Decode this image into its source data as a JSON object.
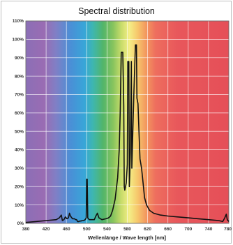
{
  "chart_data": {
    "type": "line",
    "title": "Spectral distribution",
    "xlabel": "Wellenlänge / Wave length [nm]",
    "ylabel": "",
    "xlim": [
      380,
      780
    ],
    "ylim": [
      0,
      110
    ],
    "x_ticks": [
      "380",
      "420",
      "460",
      "500",
      "540",
      "580",
      "620",
      "660",
      "700",
      "740",
      "780"
    ],
    "y_ticks": [
      "0%",
      "10%",
      "20%",
      "30%",
      "40%",
      "50%",
      "60%",
      "70%",
      "80%",
      "90%",
      "100%",
      "110%"
    ],
    "grid": true,
    "background": "visible spectrum color bands",
    "series": [
      {
        "color": "#111111",
        "points": [
          [
            380,
            0.5
          ],
          [
            400,
            1
          ],
          [
            420,
            1.5
          ],
          [
            440,
            2
          ],
          [
            446,
            3
          ],
          [
            450,
            4.5
          ],
          [
            452,
            1.5
          ],
          [
            455,
            2
          ],
          [
            458,
            3.5
          ],
          [
            461,
            2.5
          ],
          [
            464,
            3
          ],
          [
            466,
            5.5
          ],
          [
            468,
            4
          ],
          [
            472,
            2.5
          ],
          [
            476,
            2.5
          ],
          [
            478,
            2
          ],
          [
            480,
            2
          ],
          [
            481,
            1.5
          ],
          [
            482,
            1
          ],
          [
            484,
            1
          ],
          [
            486,
            1.2
          ],
          [
            489,
            1.3
          ],
          [
            491,
            1.5
          ],
          [
            494,
            1.5
          ],
          [
            497,
            2
          ],
          [
            499,
            3
          ],
          [
            500,
            24
          ],
          [
            501,
            24
          ],
          [
            502,
            3
          ],
          [
            505,
            2
          ],
          [
            510,
            2
          ],
          [
            515,
            2
          ],
          [
            518,
            4
          ],
          [
            521,
            5.5
          ],
          [
            524,
            3
          ],
          [
            530,
            2
          ],
          [
            538,
            2.5
          ],
          [
            543,
            3
          ],
          [
            547,
            4
          ],
          [
            551,
            7
          ],
          [
            556,
            13
          ],
          [
            561,
            25
          ],
          [
            564,
            40
          ],
          [
            566,
            60
          ],
          [
            568,
            93
          ],
          [
            571,
            93
          ],
          [
            573,
            64
          ],
          [
            574,
            20
          ],
          [
            575,
            18
          ],
          [
            578,
            22
          ],
          [
            580,
            32
          ],
          [
            581,
            88
          ],
          [
            583,
            88
          ],
          [
            584,
            20
          ],
          [
            585,
            28
          ],
          [
            586,
            40
          ],
          [
            588,
            88
          ],
          [
            589,
            30
          ],
          [
            593,
            72
          ],
          [
            596,
            97
          ],
          [
            598,
            97
          ],
          [
            599,
            68
          ],
          [
            601,
            65
          ],
          [
            603,
            50
          ],
          [
            605,
            35
          ],
          [
            608,
            30
          ],
          [
            610,
            25
          ],
          [
            614,
            14
          ],
          [
            618,
            10
          ],
          [
            624,
            7
          ],
          [
            632,
            5.5
          ],
          [
            645,
            4.5
          ],
          [
            660,
            4
          ],
          [
            680,
            3.5
          ],
          [
            700,
            3
          ],
          [
            720,
            2.5
          ],
          [
            740,
            2
          ],
          [
            760,
            1.5
          ],
          [
            768,
            1
          ],
          [
            772,
            3
          ],
          [
            775,
            5
          ],
          [
            777,
            2
          ],
          [
            780,
            1
          ]
        ]
      }
    ]
  }
}
